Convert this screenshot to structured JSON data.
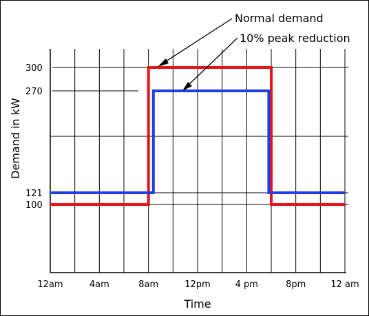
{
  "chart_data": {
    "type": "line",
    "title": "",
    "xlabel": "Time",
    "ylabel": "Demand in kW",
    "x_ticks": [
      "12am",
      "4am",
      "8am",
      "12pm",
      "4 pm",
      "8pm",
      "12 am"
    ],
    "x_range_hours": [
      0,
      24
    ],
    "ylim": [
      0,
      380
    ],
    "y_ticks": [
      100,
      121,
      270,
      300
    ],
    "grid": true,
    "series": [
      {
        "name": "Normal demand",
        "color": "#e8141b",
        "x": [
          0,
          8,
          8,
          18,
          18,
          24
        ],
        "y": [
          100,
          100,
          300,
          300,
          100,
          100
        ]
      },
      {
        "name": "10% peak reduction",
        "color": "#1f3fe0",
        "x": [
          0,
          8.4,
          8.4,
          17.8,
          17.8,
          24
        ],
        "y": [
          121,
          121,
          270,
          270,
          121,
          121
        ]
      }
    ],
    "annotations": [
      "Normal demand",
      "10% peak reduction"
    ]
  }
}
